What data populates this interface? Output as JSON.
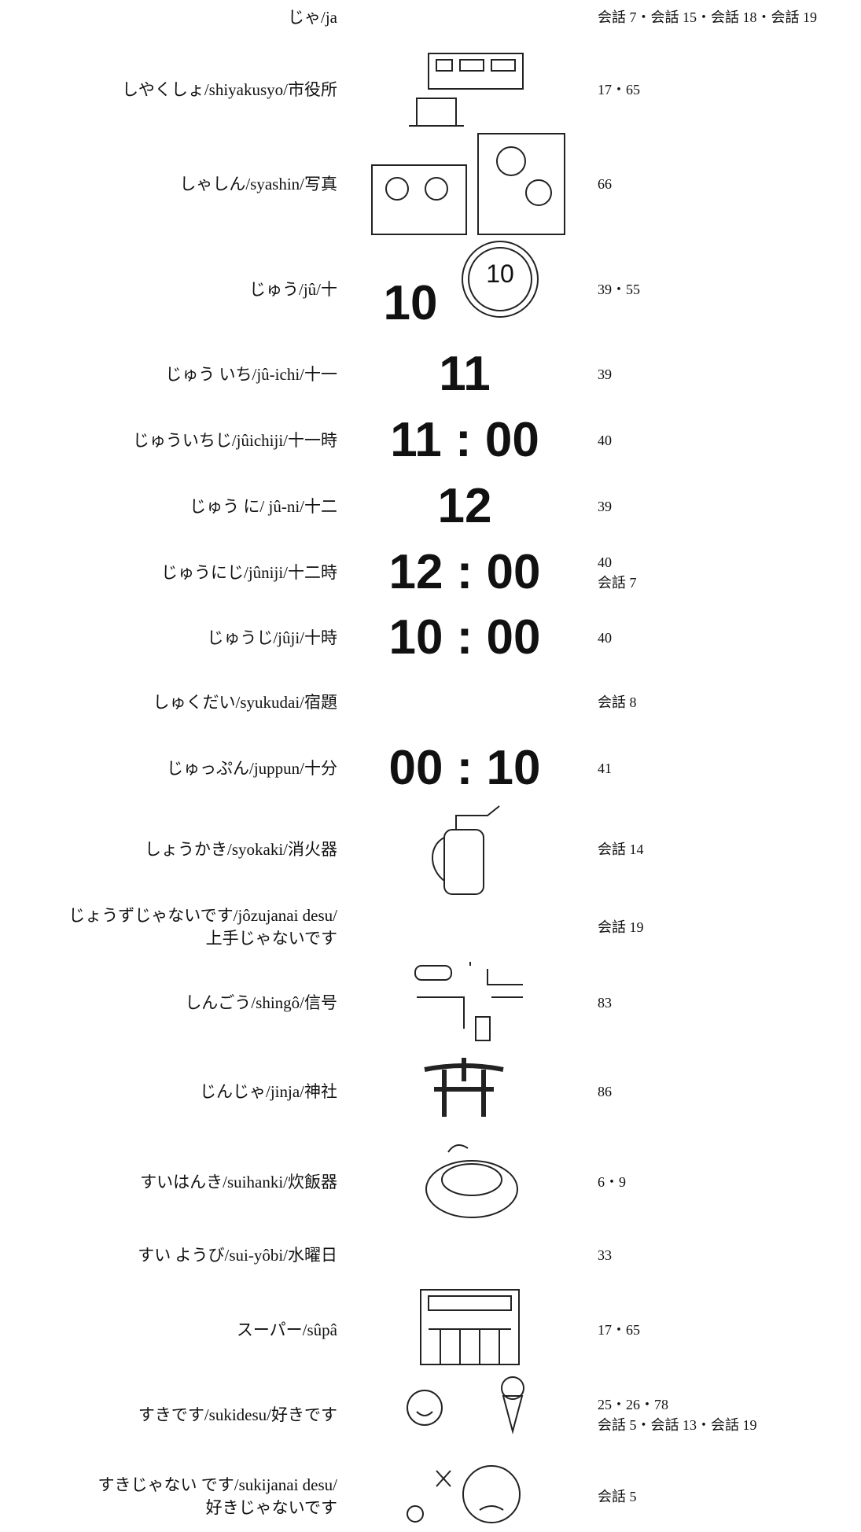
{
  "rows": [
    {
      "term": [
        "じゃ/ja"
      ],
      "refs": [
        "会話 7・会話 15・会話 18・会話 19"
      ]
    },
    {
      "term": [
        "しやくしょ/shiyakusyo/市役所"
      ],
      "refs": [
        "17・65"
      ]
    },
    {
      "term": [
        "しゃしん/syashin/写真"
      ],
      "refs": [
        "66"
      ]
    },
    {
      "term": [
        "じゅう/jû/十"
      ],
      "image_text": "10",
      "coin_text": "10",
      "refs": [
        "39・55"
      ]
    },
    {
      "term": [
        "じゅう いち/jû-ichi/十一"
      ],
      "image_text": "11",
      "refs": [
        "39"
      ]
    },
    {
      "term": [
        "じゅういちじ/jûichiji/十一時"
      ],
      "image_text": "11 : 00",
      "refs": [
        "40"
      ]
    },
    {
      "term": [
        "じゅう に/ jû-ni/十二"
      ],
      "image_text": "12",
      "refs": [
        "39"
      ]
    },
    {
      "term": [
        "じゅうにじ/jûniji/十二時"
      ],
      "image_text": "12 : 00",
      "refs": [
        "40",
        "会話 7"
      ]
    },
    {
      "term": [
        "じゅうじ/jûji/十時"
      ],
      "image_text": "10 : 00",
      "refs": [
        "40"
      ]
    },
    {
      "term": [
        "しゅくだい/syukudai/宿題"
      ],
      "refs": [
        "会話 8"
      ]
    },
    {
      "term": [
        "じゅっぷん/juppun/十分"
      ],
      "image_text": "00 : 10",
      "refs": [
        "41"
      ]
    },
    {
      "term": [
        "しょうかき/syokaki/消火器"
      ],
      "refs": [
        "会話 14"
      ]
    },
    {
      "term": [
        "じょうずじゃないです/jôzujanai desu/",
        "上手じゃないです"
      ],
      "refs": [
        "会話 19"
      ]
    },
    {
      "term": [
        "しんごう/shingô/信号"
      ],
      "refs": [
        "83"
      ]
    },
    {
      "term": [
        "じんじゃ/jinja/神社"
      ],
      "refs": [
        "86"
      ]
    },
    {
      "term": [
        "すいはんき/suihanki/炊飯器"
      ],
      "refs": [
        "6・9"
      ]
    },
    {
      "term": [
        "すい ようび/sui-yôbi/水曜日"
      ],
      "refs": [
        "33"
      ]
    },
    {
      "term": [
        "スーパー/sûpâ"
      ],
      "refs": [
        "17・65"
      ]
    },
    {
      "term": [
        "すきです/sukidesu/好きです"
      ],
      "refs": [
        "25・26・78",
        "会話 5・会話 13・会話 19"
      ]
    },
    {
      "term": [
        "すきじゃない です/sukijanai desu/",
        "好きじゃないです"
      ],
      "refs": [
        "会話 5"
      ]
    }
  ]
}
